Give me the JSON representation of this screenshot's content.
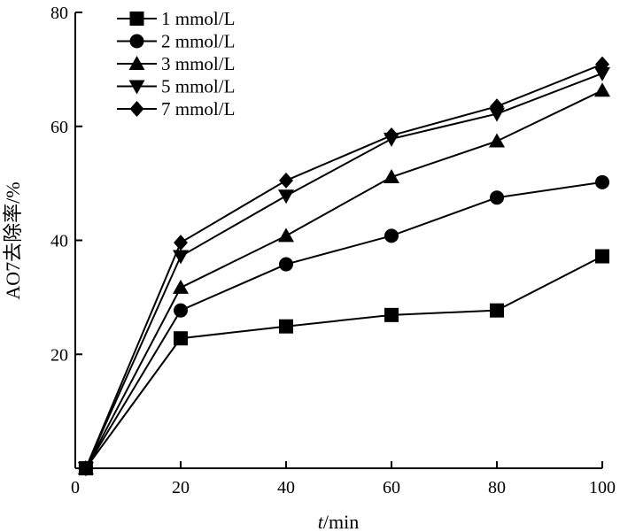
{
  "chart_data": {
    "type": "line",
    "xlabel_var": "t",
    "xlabel_unit": "/min",
    "ylabel": "AO7去除率/%",
    "xlim": [
      0,
      100
    ],
    "ylim": [
      0,
      80
    ],
    "xticks": [
      0,
      20,
      40,
      60,
      80,
      100
    ],
    "yticks": [
      20,
      40,
      60,
      80
    ],
    "grid": false,
    "legend_position": "top-left",
    "x": [
      2,
      20,
      40,
      60,
      80,
      100
    ],
    "series": [
      {
        "name": "1 mmol/L",
        "marker": "square",
        "values": [
          0,
          22.8,
          24.9,
          26.9,
          27.7,
          37.2
        ]
      },
      {
        "name": "2 mmol/L",
        "marker": "circle",
        "values": [
          0,
          27.7,
          35.8,
          40.8,
          47.5,
          50.2
        ]
      },
      {
        "name": "3 mmol/L",
        "marker": "triangle-up",
        "values": [
          0,
          31.7,
          40.8,
          51.1,
          57.4,
          66.3
        ]
      },
      {
        "name": "5 mmol/L",
        "marker": "triangle-down",
        "values": [
          0,
          37.2,
          47.8,
          57.8,
          62.2,
          69.3
        ]
      },
      {
        "name": "7 mmol/L",
        "marker": "diamond",
        "values": [
          0,
          39.6,
          50.5,
          58.4,
          63.5,
          70.9
        ]
      }
    ]
  }
}
